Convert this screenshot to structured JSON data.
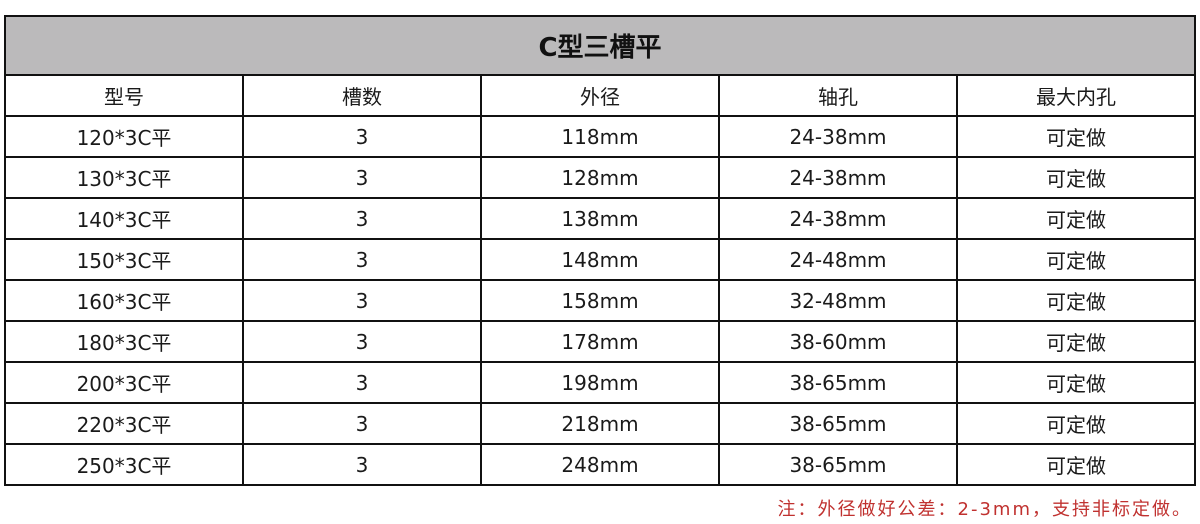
{
  "title": "C型三槽平",
  "columns": [
    "型号",
    "槽数",
    "外径",
    "轴孔",
    "最大内孔"
  ],
  "rows": [
    [
      "120*3C平",
      "3",
      "118mm",
      "24-38mm",
      "可定做"
    ],
    [
      "130*3C平",
      "3",
      "128mm",
      "24-38mm",
      "可定做"
    ],
    [
      "140*3C平",
      "3",
      "138mm",
      "24-38mm",
      "可定做"
    ],
    [
      "150*3C平",
      "3",
      "148mm",
      "24-48mm",
      "可定做"
    ],
    [
      "160*3C平",
      "3",
      "158mm",
      "32-48mm",
      "可定做"
    ],
    [
      "180*3C平",
      "3",
      "178mm",
      "38-60mm",
      "可定做"
    ],
    [
      "200*3C平",
      "3",
      "198mm",
      "38-65mm",
      "可定做"
    ],
    [
      "220*3C平",
      "3",
      "218mm",
      "38-65mm",
      "可定做"
    ],
    [
      "250*3C平",
      "3",
      "248mm",
      "38-65mm",
      "可定做"
    ]
  ],
  "note": "注：外径做好公差：2-3mm，支持非标定做。",
  "colors": {
    "title_bg": "#bbbabb",
    "note": "#c0312f"
  }
}
